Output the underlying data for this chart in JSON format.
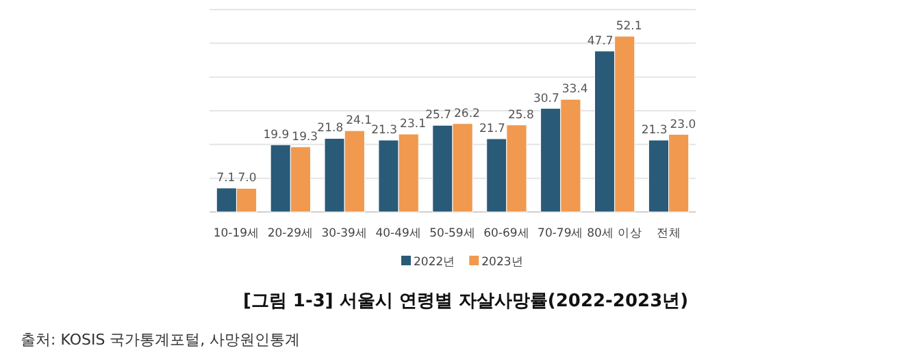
{
  "chart_data": {
    "type": "bar",
    "title": "[그림 1-3] 서울시 연령별 자살사망률(2022-2023년)",
    "annotations": [
      "출처: KOSIS 국가통계포털, 사망원인통계"
    ],
    "categories": [
      "10-19세",
      "20-29세",
      "30-39세",
      "40-49세",
      "50-59세",
      "60-69세",
      "70-79세",
      "80세 이상",
      "전체"
    ],
    "series": [
      {
        "name": "2022년",
        "color": "#295a78",
        "values": [
          7.1,
          19.9,
          21.8,
          21.3,
          25.7,
          21.7,
          30.7,
          47.7,
          21.3
        ],
        "value_labels": [
          "7.1",
          "19.9",
          "21.8",
          "21.3",
          "25.7",
          "21.7",
          "30.7",
          "47.7",
          "21.3"
        ]
      },
      {
        "name": "2023년",
        "color": "#f0994f",
        "values": [
          7.0,
          19.3,
          24.1,
          23.1,
          26.2,
          25.8,
          33.4,
          52.1,
          23.0
        ],
        "value_labels": [
          "7.0",
          "19.3",
          "24.1",
          "23.1",
          "26.2",
          "25.8",
          "33.4",
          "52.1",
          "23.0"
        ]
      }
    ],
    "ylim": [
      0,
      60
    ],
    "yticks": [
      {
        "value": 0,
        "label": null
      },
      {
        "value": 10,
        "label": null
      },
      {
        "value": 20,
        "label": null
      },
      {
        "value": 30,
        "label": null
      },
      {
        "value": 40,
        "label": null
      },
      {
        "value": 50,
        "label": null
      },
      {
        "value": 60,
        "label": null
      }
    ],
    "grid": "y",
    "legend": "bottom"
  }
}
